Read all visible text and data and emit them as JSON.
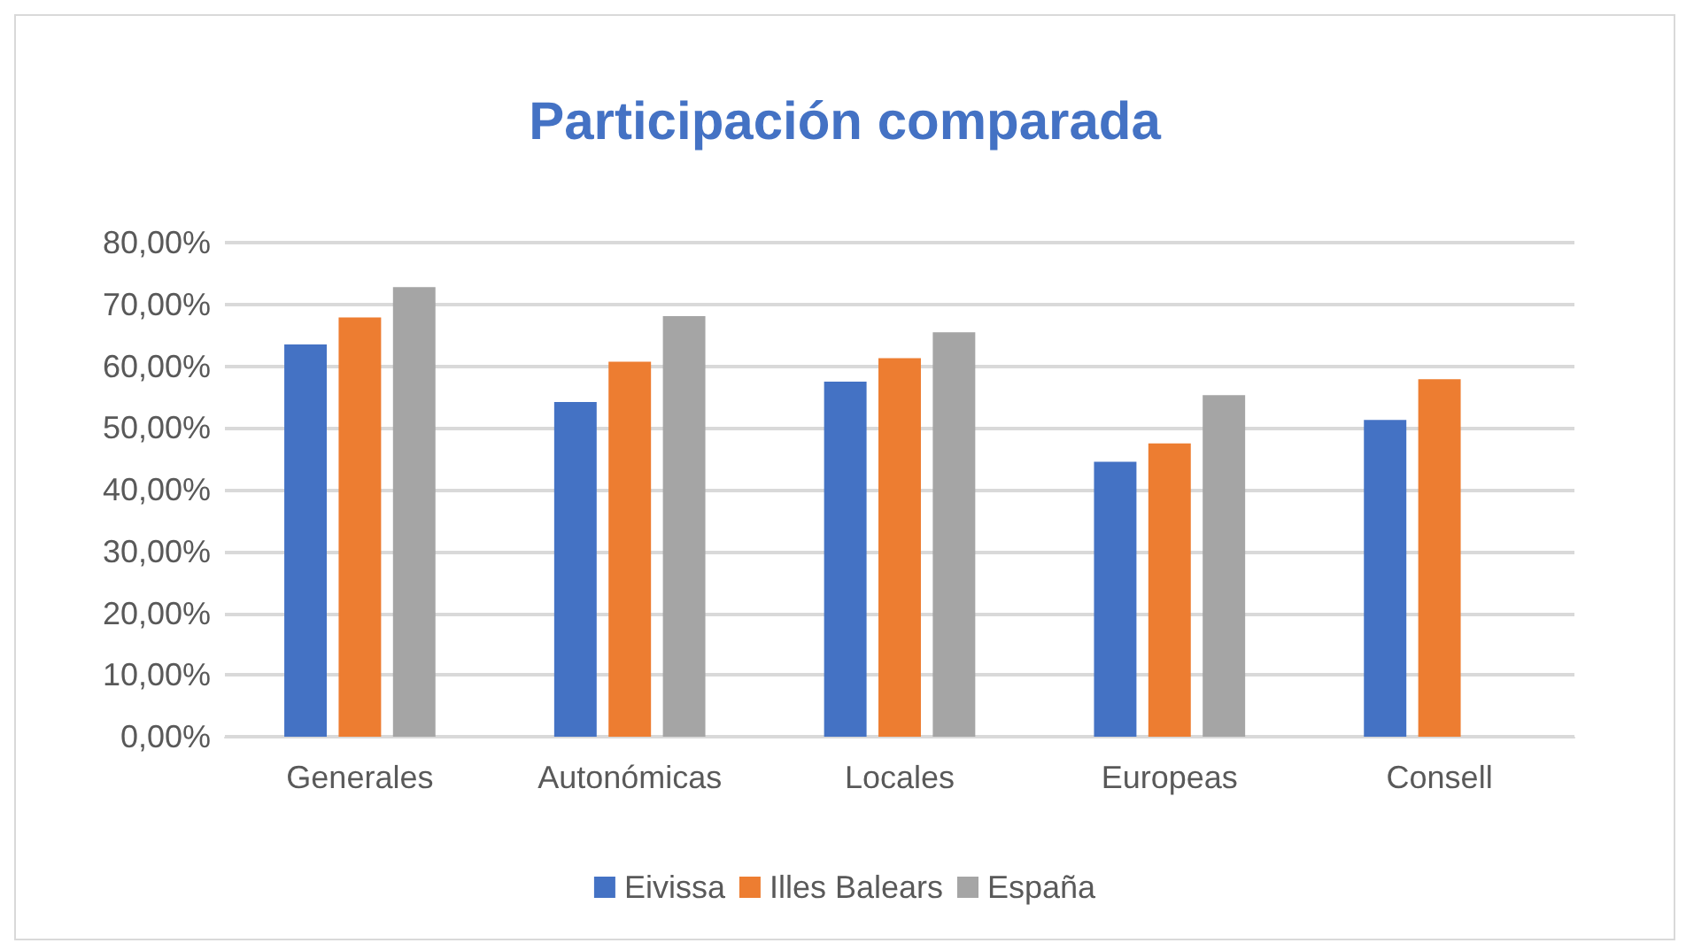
{
  "chart_data": {
    "type": "bar",
    "title": "Participación comparada",
    "categories": [
      "Generales",
      "Autonómicas",
      "Locales",
      "Europeas",
      "Consell"
    ],
    "series": [
      {
        "name": "Eivissa",
        "color": "#4472c4",
        "values": [
          63.5,
          54.2,
          57.5,
          44.5,
          51.3
        ]
      },
      {
        "name": "Illes Balears",
        "color": "#ed7d31",
        "values": [
          67.9,
          60.7,
          61.3,
          47.5,
          57.9
        ]
      },
      {
        "name": "España",
        "color": "#a5a5a5",
        "values": [
          72.8,
          68.1,
          65.5,
          55.3,
          null
        ]
      }
    ],
    "ylim": [
      0,
      80
    ],
    "yticks": [
      {
        "value": 0,
        "label": "0,00%"
      },
      {
        "value": 10,
        "label": "10,00%"
      },
      {
        "value": 20,
        "label": "20,00%"
      },
      {
        "value": 30,
        "label": "30,00%"
      },
      {
        "value": 40,
        "label": "40,00%"
      },
      {
        "value": 50,
        "label": "50,00%"
      },
      {
        "value": 60,
        "label": "60,00%"
      },
      {
        "value": 70,
        "label": "70,00%"
      },
      {
        "value": 80,
        "label": "80,00%"
      }
    ],
    "grid": "y",
    "legend": "bottom"
  }
}
